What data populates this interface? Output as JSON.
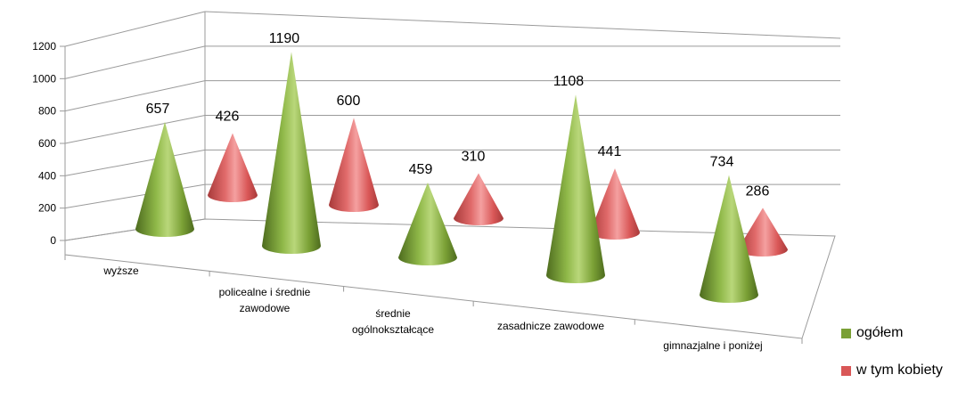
{
  "chart_data": {
    "type": "bar",
    "bar_shape": "cone-3d",
    "categories": [
      "wyższe",
      "policealne i średnie zawodowe",
      "średnie ogólnokształcące",
      "zasadnicze zawodowe",
      "gimnazjalne i poniżej"
    ],
    "category_lines": [
      [
        "wyższe"
      ],
      [
        "policealne i średnie",
        "zawodowe"
      ],
      [
        "średnie",
        "ogólnokształcące"
      ],
      [
        "zasadnicze zawodowe"
      ],
      [
        "gimnazjalne i poniżej"
      ]
    ],
    "series": [
      {
        "name": "ogółem",
        "values": [
          657,
          1190,
          459,
          1108,
          734
        ],
        "color": "#7aa035"
      },
      {
        "name": "w tym kobiety",
        "values": [
          426,
          600,
          310,
          441,
          286
        ],
        "color": "#d95757"
      }
    ],
    "y_ticks": [
      "0",
      "200",
      "400",
      "600",
      "800",
      "1000",
      "1200"
    ],
    "ylim": [
      0,
      1200
    ],
    "grid": true,
    "legend_position": "bottom-right"
  }
}
